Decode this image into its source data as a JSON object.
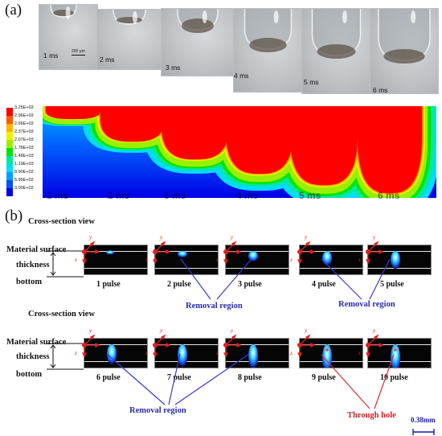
{
  "panel_a": {
    "label": "(a)",
    "photo_times": [
      "1 ms",
      "2 ms",
      "3 ms",
      "4 ms",
      "5 ms",
      "6 ms"
    ],
    "scale_bar": "200 μm",
    "legend_ticks": [
      "3.25E+03",
      "2.96E+03",
      "2.66E+03",
      "2.37E+03",
      "2.07E+03",
      "1.78E+03",
      "1.48E+03",
      "1.19E+03",
      "8.90E+02",
      "5.95E+02",
      "3.00E+02"
    ],
    "legend_colors": [
      "#ff0000",
      "#ff5a00",
      "#ffb400",
      "#f0f000",
      "#9bef00",
      "#00e600",
      "#00e8a0",
      "#00dcff",
      "#00a0ff",
      "#0050ff",
      "#0000e6"
    ],
    "sim_times": [
      "1 ms",
      "2 ms",
      "3 ms",
      "4 ms",
      "5 ms",
      "6 ms"
    ]
  },
  "panel_b": {
    "label": "(b)",
    "view_title": "Cross-section view",
    "side_labels": {
      "surface": "Material surface",
      "thickness": "thickness",
      "bottom": "bottom"
    },
    "axis": {
      "y": "y",
      "z": "z"
    },
    "row1_pulses": [
      "1 pulse",
      "2 pulse",
      "3 pulse",
      "4 pulse",
      "5 pulse"
    ],
    "row2_pulses": [
      "6 pulse",
      "7 pulse",
      "8 pulse",
      "9 pulse",
      "10 pulse"
    ],
    "removal_label": "Removal region",
    "through_label": "Through hole",
    "scale_label": "0.38mm",
    "colors": {
      "removal": "#2b2bb0",
      "through": "#d01f24"
    }
  }
}
